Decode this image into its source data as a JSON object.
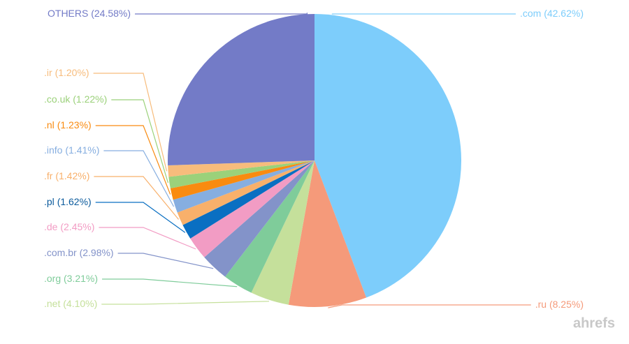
{
  "chart_data": {
    "type": "pie",
    "categories": [
      ".com",
      ".ru",
      ".net",
      ".org",
      ".com.br",
      ".de",
      ".pl",
      ".fr",
      ".info",
      ".nl",
      ".co.uk",
      ".ir",
      "OTHERS"
    ],
    "values": [
      42.62,
      8.25,
      4.1,
      3.21,
      2.98,
      2.45,
      1.62,
      1.42,
      1.41,
      1.23,
      1.22,
      1.2,
      24.58
    ],
    "value_labels": [
      "(42.62%)",
      "(8.25%)",
      "(4.10%)",
      "(3.21%)",
      "(2.98%)",
      "(2.45%)",
      "(1.62%)",
      "(1.42%)",
      "(1.41%)",
      "(1.23%)",
      "(1.22%)",
      "(1.20%)",
      "(24.58%)"
    ],
    "colors": [
      "#7dcdfb",
      "#f59a7a",
      "#c5e09b",
      "#7fcc9a",
      "#8393c9",
      "#f29cc4",
      "#0a6fc2",
      "#f8b06b",
      "#86aee0",
      "#f98b10",
      "#9bd17a",
      "#f7bc7c",
      "#737bc7"
    ],
    "watermark": "ahrefs"
  }
}
